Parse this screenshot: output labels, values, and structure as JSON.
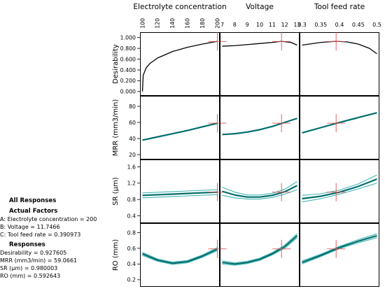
{
  "factors": [
    {
      "title": "Electrolyte concentration",
      "ticks": [
        "100",
        "120",
        "140",
        "160",
        "180",
        "200"
      ],
      "min": 100,
      "max": 200,
      "current": 200
    },
    {
      "title": "Voltage",
      "ticks": [
        "7",
        "8",
        "9",
        "10",
        "11",
        "12",
        "13"
      ],
      "min": 7,
      "max": 13,
      "current": 11.7466
    },
    {
      "title": "Tool feed rate",
      "ticks": [
        "0.3",
        "0.35",
        "0.4",
        "0.45",
        "0.5"
      ],
      "min": 0.3,
      "max": 0.5,
      "current": 0.390973
    }
  ],
  "responses": [
    {
      "label": "Desirability",
      "ticks": [
        "1.000",
        "0.800",
        "0.600",
        "0.400",
        "0.200",
        "0.000"
      ],
      "ymin": -0.08,
      "ymax": 1.1,
      "current": 0.927605
    },
    {
      "label": "MRR (mm3/min)",
      "ticks": [
        "80",
        "60",
        "40",
        "20"
      ],
      "ymin": 14,
      "ymax": 93,
      "current": 59.0661
    },
    {
      "label": "SR (µm)",
      "ticks": [
        "1.6",
        "1.2",
        "0.8",
        "0.4"
      ],
      "ymin": 0.22,
      "ymax": 1.78,
      "current": 0.980003
    },
    {
      "label": "RO (mm)",
      "ticks": [
        "0.8",
        "0.6",
        "0.4",
        "0.2"
      ],
      "ymin": 0.11,
      "ymax": 0.92,
      "current": 0.592643
    }
  ],
  "info": {
    "heading": "All Responses",
    "factors_heading": "Actual Factors",
    "factor_lines": [
      "A: Electrolyte concentration = 200",
      "B: Voltage = 11.7466",
      "C: Tool feed rate = 0.390973"
    ],
    "responses_heading": "Responses",
    "response_lines": [
      "Desirability = 0.927605",
      "MRR (mm3/min) = 59.0661",
      "SR (µm) = 0.980003",
      "RO (mm) = 0.592643"
    ]
  },
  "colors": {
    "fit": "#006e6e",
    "band": "#45b5b5",
    "marker": "#e05050",
    "desirability": "#000000",
    "frame": "#000000"
  },
  "chart_data": {
    "type": "line",
    "title": "",
    "grid": false,
    "panels": [
      {
        "row": "Desirability",
        "col": "Electrolyte concentration",
        "x": [
          100,
          101,
          105,
          110,
          120,
          140,
          160,
          180,
          200
        ],
        "y": [
          0.0,
          0.3,
          0.44,
          0.52,
          0.62,
          0.74,
          0.82,
          0.88,
          0.93
        ]
      },
      {
        "row": "Desirability",
        "col": "Voltage",
        "x": [
          7,
          8,
          9,
          10,
          11,
          11.75,
          12.5,
          13
        ],
        "y": [
          0.84,
          0.85,
          0.87,
          0.89,
          0.91,
          0.93,
          0.91,
          0.86
        ]
      },
      {
        "row": "Desirability",
        "col": "Tool feed rate",
        "x": [
          0.3,
          0.35,
          0.39,
          0.42,
          0.45,
          0.48,
          0.5
        ],
        "y": [
          0.86,
          0.91,
          0.93,
          0.92,
          0.88,
          0.8,
          0.7
        ]
      },
      {
        "row": "MRR (mm3/min)",
        "col": "Electrolyte concentration",
        "x": [
          100,
          120,
          140,
          160,
          180,
          200
        ],
        "y": [
          38,
          42,
          46,
          50,
          54.5,
          59
        ]
      },
      {
        "row": "MRR (mm3/min)",
        "col": "Voltage",
        "x": [
          7,
          8,
          9,
          10,
          11,
          12,
          13
        ],
        "y": [
          45,
          46,
          48,
          51,
          55,
          60,
          65
        ]
      },
      {
        "row": "MRR (mm3/min)",
        "col": "Tool feed rate",
        "x": [
          0.3,
          0.35,
          0.4,
          0.45,
          0.5
        ],
        "y": [
          47,
          53.5,
          60,
          66,
          72
        ]
      },
      {
        "row": "SR (µm)",
        "col": "Electrolyte concentration",
        "x": [
          100,
          150,
          200
        ],
        "y": [
          0.9,
          0.94,
          0.98
        ],
        "band": [
          0.06,
          0.06,
          0.06
        ]
      },
      {
        "row": "SR (µm)",
        "col": "Voltage",
        "x": [
          7,
          8,
          9,
          10,
          11,
          12,
          13
        ],
        "y": [
          1.0,
          0.91,
          0.86,
          0.86,
          0.9,
          0.99,
          1.14
        ],
        "band": [
          0.1,
          0.07,
          0.05,
          0.05,
          0.05,
          0.06,
          0.1
        ]
      },
      {
        "row": "SR (µm)",
        "col": "Tool feed rate",
        "x": [
          0.3,
          0.35,
          0.4,
          0.45,
          0.5
        ],
        "y": [
          0.82,
          0.88,
          0.98,
          1.12,
          1.3
        ],
        "band": [
          0.08,
          0.06,
          0.05,
          0.06,
          0.1
        ]
      },
      {
        "row": "RO (mm)",
        "col": "Electrolyte concentration",
        "x": [
          100,
          120,
          140,
          160,
          180,
          200
        ],
        "y": [
          0.53,
          0.45,
          0.41,
          0.43,
          0.5,
          0.59
        ],
        "band": [
          0.02,
          0.015,
          0.015,
          0.015,
          0.015,
          0.02
        ]
      },
      {
        "row": "RO (mm)",
        "col": "Voltage",
        "x": [
          7,
          8,
          9,
          10,
          11,
          12,
          13
        ],
        "y": [
          0.42,
          0.4,
          0.42,
          0.46,
          0.53,
          0.62,
          0.76
        ],
        "band": [
          0.02,
          0.015,
          0.015,
          0.015,
          0.015,
          0.02,
          0.025
        ]
      },
      {
        "row": "RO (mm)",
        "col": "Tool feed rate",
        "x": [
          0.3,
          0.35,
          0.4,
          0.45,
          0.5
        ],
        "y": [
          0.42,
          0.51,
          0.61,
          0.69,
          0.76
        ],
        "band": [
          0.02,
          0.015,
          0.015,
          0.02,
          0.025
        ]
      }
    ]
  }
}
